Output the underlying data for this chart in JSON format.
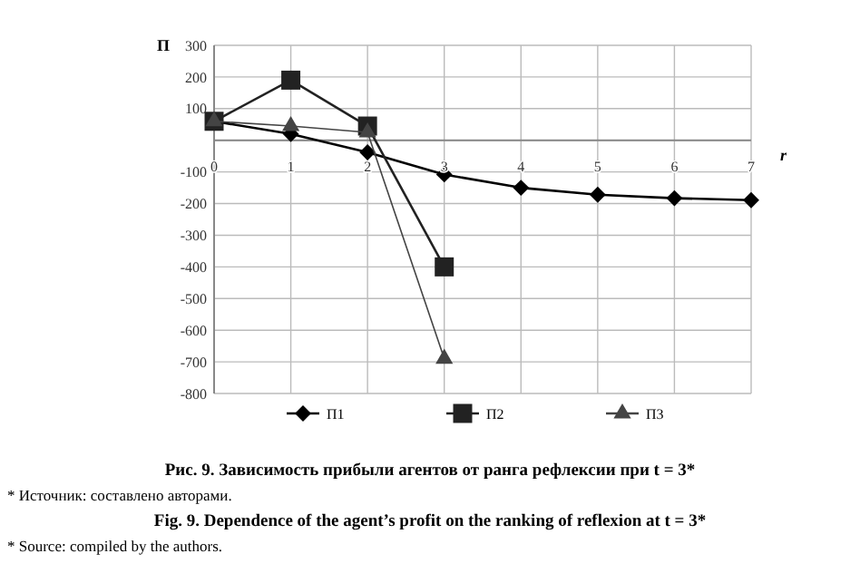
{
  "chart_data": {
    "type": "line",
    "title": "Рис. 9. Зависимость прибыли агентов от ранга рефлексии при t = 3*",
    "xlabel": "r",
    "ylabel": "П",
    "annotations": [
      "* Источник: составлено авторами.",
      "Fig. 9. Dependence of the agent’s profit on the ranking of reflexion at t = 3*",
      "* Source: compiled by the authors."
    ],
    "x": [
      0,
      1,
      2,
      3,
      4,
      5,
      6,
      7
    ],
    "series": [
      {
        "name": "П1",
        "color": "#000000",
        "marker": "diamond",
        "values": [
          60,
          20,
          -38,
          -108,
          -150,
          -172,
          -183,
          -189
        ]
      },
      {
        "name": "П2",
        "color": "#222222",
        "marker": "square",
        "values": [
          60,
          190,
          45,
          -400,
          null,
          null,
          null,
          null
        ]
      },
      {
        "name": "П3",
        "color": "#444444",
        "marker": "triangle",
        "values": [
          60,
          45,
          25,
          -690,
          null,
          null,
          null,
          null
        ]
      }
    ],
    "xlim": [
      0,
      7
    ],
    "xticks": [
      0,
      1,
      2,
      3,
      4,
      5,
      6,
      7
    ],
    "ylim": [
      -800,
      300
    ],
    "yticks": [
      -800,
      -700,
      -600,
      -500,
      -400,
      -300,
      -200,
      -100,
      {
        "value": 0,
        "label": null
      },
      100,
      200,
      300
    ],
    "grid": true,
    "legend": "bottom"
  }
}
